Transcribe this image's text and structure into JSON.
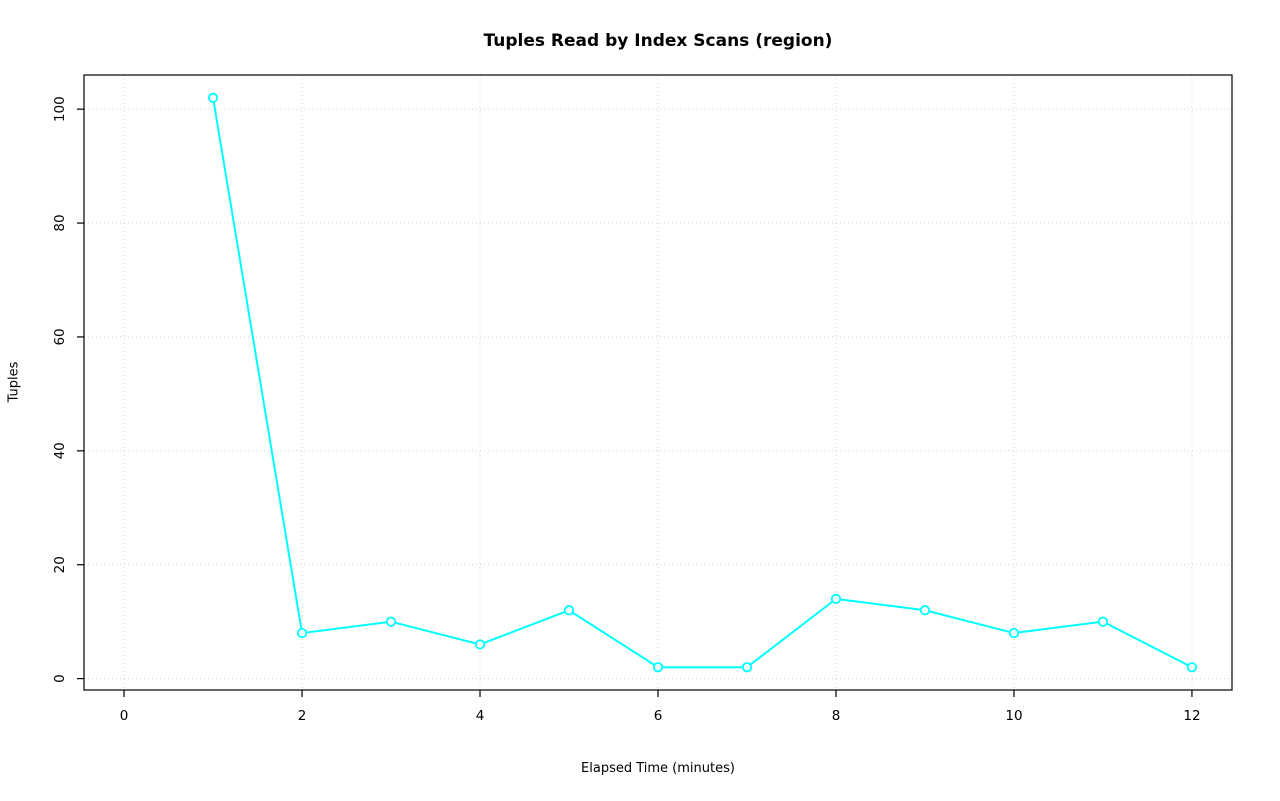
{
  "chart_data": {
    "type": "line",
    "title": "Tuples Read by Index Scans (region)",
    "xlabel": "Elapsed Time (minutes)",
    "ylabel": "Tuples",
    "x": [
      1,
      2,
      3,
      4,
      5,
      6,
      7,
      8,
      9,
      10,
      11,
      12
    ],
    "y": [
      102,
      8,
      10,
      6,
      12,
      2,
      2,
      14,
      12,
      8,
      10,
      2
    ],
    "xlim": [
      -0.45,
      12.45
    ],
    "ylim": [
      -2,
      106
    ],
    "xticks": [
      0,
      2,
      4,
      6,
      8,
      10,
      12
    ],
    "yticks": [
      0,
      20,
      40,
      60,
      80,
      100
    ],
    "grid": true,
    "legend": "none",
    "line_color": "#00ffff",
    "marker": "open-circle",
    "marker_fill": "#ffffff",
    "grid_color": "#d3d3d3",
    "axis_color": "#000000",
    "background": "#ffffff"
  }
}
